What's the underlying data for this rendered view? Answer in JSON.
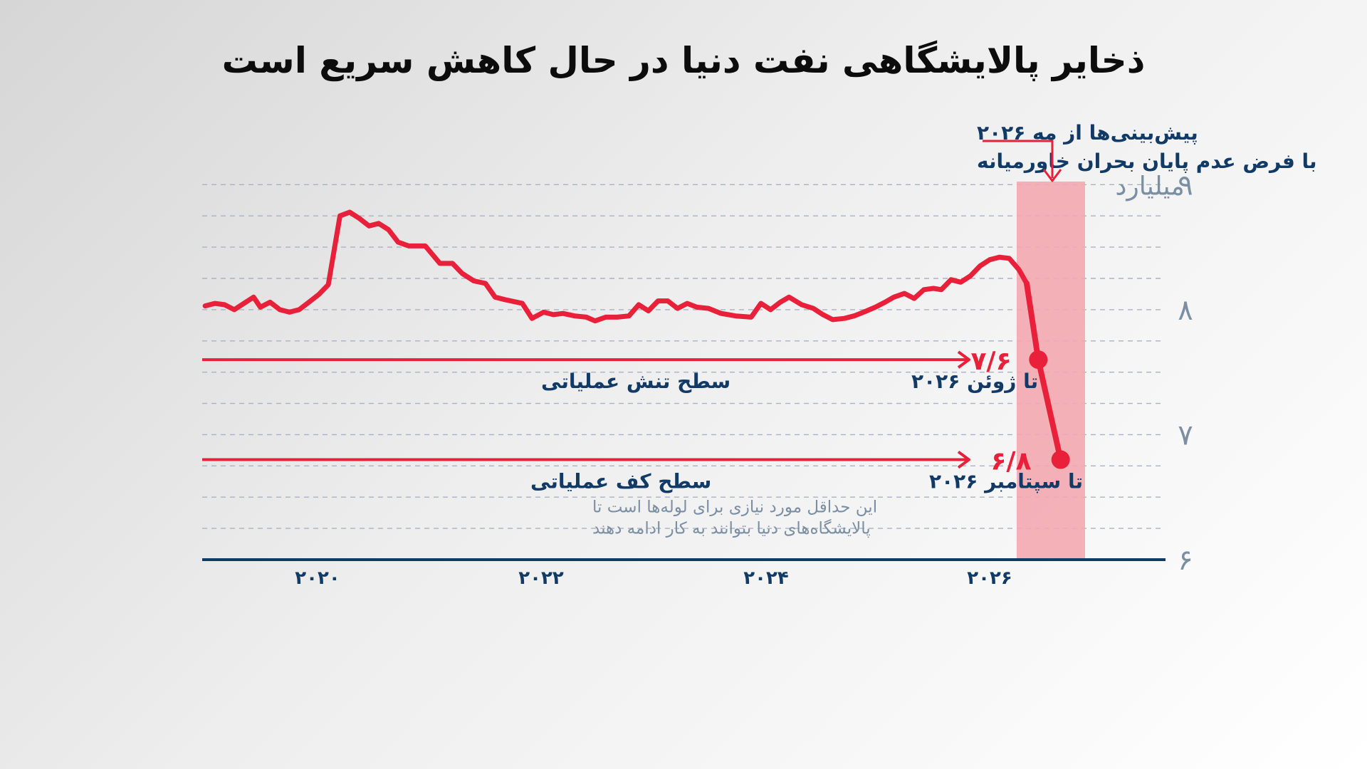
{
  "title": "ذخایر پالایشگاهی نفت دنیا در حال کاهش سریع است",
  "chart_data": {
    "type": "line",
    "yunit": "میلیارد",
    "yticks": [
      {
        "value": 9,
        "label": "۹"
      },
      {
        "value": 8,
        "label": "۸"
      },
      {
        "value": 7,
        "label": "۷"
      },
      {
        "value": 6,
        "label": "۶"
      }
    ],
    "ylim": [
      6,
      9.15
    ],
    "xlim": [
      2019.0,
      2027.5
    ],
    "xticks": [
      {
        "value": 2020,
        "label": "۲۰۲۰"
      },
      {
        "value": 2022,
        "label": "۲۰۲۲"
      },
      {
        "value": 2024,
        "label": "۲۰۲۴"
      },
      {
        "value": 2026,
        "label": "۲۰۲۶"
      }
    ],
    "series": [
      {
        "points": [
          [
            2019.03,
            8.03
          ],
          [
            2019.13,
            8.05
          ],
          [
            2019.23,
            8.04
          ],
          [
            2019.33,
            8.0
          ],
          [
            2019.43,
            8.05
          ],
          [
            2019.53,
            8.1
          ],
          [
            2019.6,
            8.02
          ],
          [
            2019.7,
            8.06
          ],
          [
            2019.8,
            8.0
          ],
          [
            2019.9,
            7.98
          ],
          [
            2020.0,
            8.0
          ],
          [
            2020.1,
            8.06
          ],
          [
            2020.2,
            8.12
          ],
          [
            2020.3,
            8.2
          ],
          [
            2020.42,
            8.75
          ],
          [
            2020.52,
            8.78
          ],
          [
            2020.62,
            8.73
          ],
          [
            2020.72,
            8.67
          ],
          [
            2020.82,
            8.69
          ],
          [
            2020.92,
            8.64
          ],
          [
            2021.02,
            8.54
          ],
          [
            2021.13,
            8.51
          ],
          [
            2021.3,
            8.51
          ],
          [
            2021.45,
            8.37
          ],
          [
            2021.58,
            8.37
          ],
          [
            2021.68,
            8.29
          ],
          [
            2021.8,
            8.23
          ],
          [
            2021.92,
            8.21
          ],
          [
            2022.02,
            8.1
          ],
          [
            2022.12,
            8.08
          ],
          [
            2022.3,
            8.05
          ],
          [
            2022.4,
            7.93
          ],
          [
            2022.52,
            7.98
          ],
          [
            2022.62,
            7.96
          ],
          [
            2022.72,
            7.97
          ],
          [
            2022.84,
            7.95
          ],
          [
            2022.96,
            7.94
          ],
          [
            2023.05,
            7.91
          ],
          [
            2023.16,
            7.94
          ],
          [
            2023.28,
            7.94
          ],
          [
            2023.4,
            7.95
          ],
          [
            2023.5,
            8.04
          ],
          [
            2023.6,
            7.99
          ],
          [
            2023.7,
            8.07
          ],
          [
            2023.8,
            8.07
          ],
          [
            2023.9,
            8.01
          ],
          [
            2024.0,
            8.05
          ],
          [
            2024.1,
            8.02
          ],
          [
            2024.22,
            8.01
          ],
          [
            2024.35,
            7.97
          ],
          [
            2024.5,
            7.95
          ],
          [
            2024.66,
            7.94
          ],
          [
            2024.76,
            8.05
          ],
          [
            2024.86,
            8.0
          ],
          [
            2024.96,
            8.06
          ],
          [
            2025.05,
            8.1
          ],
          [
            2025.18,
            8.04
          ],
          [
            2025.3,
            8.01
          ],
          [
            2025.4,
            7.96
          ],
          [
            2025.5,
            7.92
          ],
          [
            2025.62,
            7.93
          ],
          [
            2025.72,
            7.95
          ],
          [
            2025.82,
            7.98
          ],
          [
            2025.94,
            8.02
          ],
          [
            2026.04,
            8.06
          ],
          [
            2026.13,
            8.1
          ],
          [
            2026.24,
            8.13
          ],
          [
            2026.34,
            8.09
          ],
          [
            2026.44,
            8.16
          ],
          [
            2026.54,
            8.17
          ],
          [
            2026.62,
            8.16
          ],
          [
            2026.72,
            8.24
          ],
          [
            2026.82,
            8.22
          ],
          [
            2026.92,
            8.27
          ],
          [
            2027.02,
            8.35
          ],
          [
            2027.12,
            8.4
          ],
          [
            2027.22,
            8.42
          ],
          [
            2027.32,
            8.41
          ],
          [
            2027.42,
            8.32
          ],
          [
            2027.5,
            8.21
          ]
        ]
      }
    ],
    "forecast_segment": [
      [
        2027.5,
        8.21
      ],
      [
        2027.62,
        7.6
      ],
      [
        2027.85,
        6.8
      ]
    ],
    "markers": [
      {
        "x": 2027.62,
        "y": 7.6,
        "label": "۷/۶",
        "date_label": "تا ژوئن ۲۰۲۶",
        "level_label": "سطح تنش عملیاتی"
      },
      {
        "x": 2027.85,
        "y": 6.8,
        "label": "۶/۸",
        "date_label": "تا سپتامبر ۲۰۲۶",
        "level_label": "سطح کف عملیاتی",
        "note": [
          "این حداقل مورد نیازی برای لوله‌ها است تا",
          "پالایشگاه‌های دنیا بتوانند به کار ادامه دهند"
        ]
      }
    ],
    "forecast_note": [
      "پیش‌بینی‌ها از مه ۲۰۲۶",
      "با فرض عدم پایان بحران خاورمیانه"
    ],
    "colors": {
      "line": "#e8203a",
      "band": "#f4a8b0",
      "axis": "#123a66",
      "ytick": "#7a8fa3",
      "label": "#123a66",
      "grid": "#a9b1c6"
    }
  }
}
